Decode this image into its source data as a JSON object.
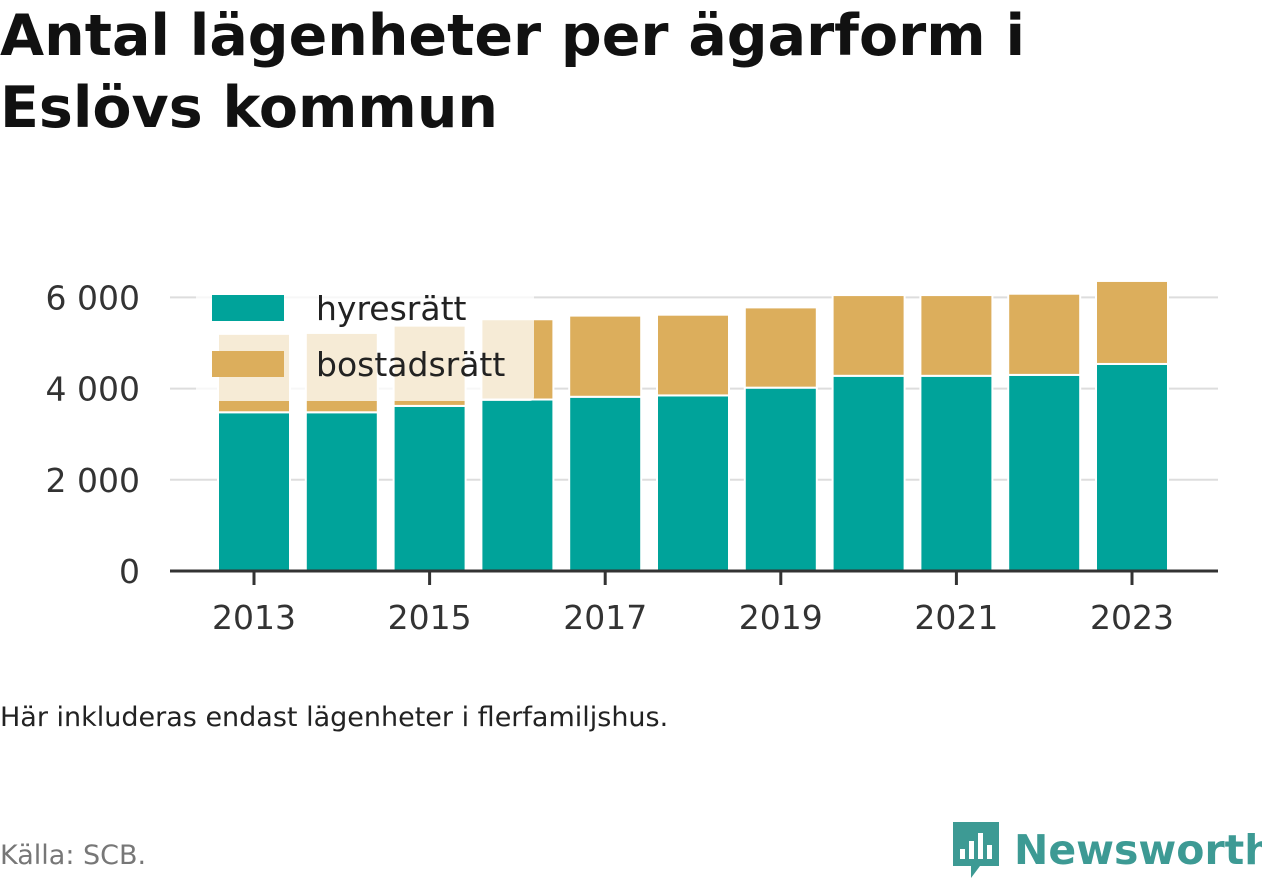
{
  "header": {
    "title": "Antal lägenheter per ägarform i Eslövs kommun"
  },
  "footer": {
    "note": "Här inkluderas endast lägenheter i flerfamiljshus.",
    "source": "Källa: SCB.",
    "brand": "Newsworthy",
    "brand_icon": "newsworthy-chart-bubble-icon"
  },
  "colors": {
    "hyresratt": "#00a39a",
    "bostadsratt": "#dcae5c",
    "grid": "#dddddd",
    "axis": "#333333",
    "brand": "#3d9a94"
  },
  "chart_data": {
    "type": "bar",
    "stacked": true,
    "categories": [
      2013,
      2014,
      2015,
      2016,
      2017,
      2018,
      2019,
      2020,
      2021,
      2022,
      2023
    ],
    "x_tick_labels": [
      "2013",
      "2015",
      "2017",
      "2019",
      "2021",
      "2023"
    ],
    "y_ticks": [
      0,
      2000,
      4000,
      6000
    ],
    "y_tick_labels": [
      "0",
      "2 000",
      "4 000",
      "6 000"
    ],
    "ylim": [
      0,
      6600
    ],
    "grid": true,
    "legend_position": "top-left",
    "series": [
      {
        "name": "hyresrätt",
        "color": "#00a39a",
        "values": [
          3480,
          3480,
          3620,
          3760,
          3820,
          3850,
          4020,
          4280,
          4280,
          4300,
          4540
        ]
      },
      {
        "name": "bostadsrätt",
        "color": "#dcae5c",
        "values": [
          1720,
          1740,
          1760,
          1760,
          1780,
          1770,
          1760,
          1770,
          1770,
          1780,
          1820
        ]
      }
    ]
  }
}
